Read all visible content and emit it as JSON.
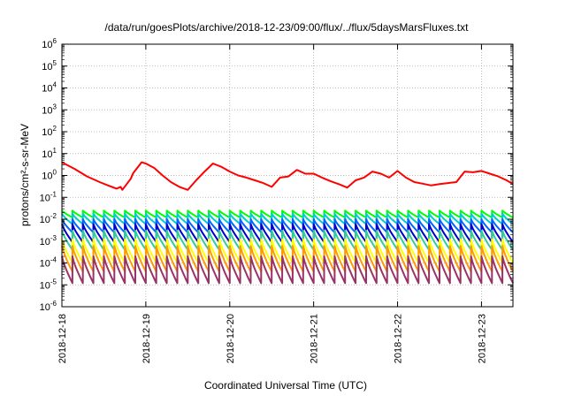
{
  "chart_data": {
    "type": "line",
    "title": "/data/run/goesPlots/archive/2018-12-23/09:00/flux/../flux/5daysMarsFluxes.txt",
    "xlabel": "Coordinated Universal Time (UTC)",
    "ylabel": "protons/cm²-s-sr-MeV",
    "yscale": "log",
    "ylim": [
      1e-06,
      1000000.0
    ],
    "xlim": [
      "2018-12-18",
      "2018-12-23 09:00"
    ],
    "x_ticks": [
      "2018-12-18",
      "2018-12-19",
      "2018-12-20",
      "2018-12-21",
      "2018-12-22",
      "2018-12-23"
    ],
    "y_ticks": [
      "10-6",
      "10-5",
      "10-4",
      "10-3",
      "10-2",
      "10-1",
      "100",
      "101",
      "102",
      "103",
      "104",
      "105",
      "106"
    ],
    "grid": true,
    "legend": "none",
    "series": [
      {
        "color": "#ff0000",
        "x_days": [
          0.0,
          0.15,
          0.3,
          0.45,
          0.55,
          0.65,
          0.7,
          0.72,
          0.82,
          0.85,
          0.95,
          1.0,
          1.1,
          1.2,
          1.3,
          1.4,
          1.5,
          1.6,
          1.7,
          1.8,
          1.9,
          2.0,
          2.1,
          2.2,
          2.3,
          2.4,
          2.5,
          2.6,
          2.7,
          2.8,
          2.9,
          3.0,
          3.1,
          3.2,
          3.3,
          3.4,
          3.5,
          3.6,
          3.7,
          3.8,
          3.9,
          4.0,
          4.1,
          4.2,
          4.3,
          4.4,
          4.5,
          4.6,
          4.7,
          4.8,
          4.9,
          5.0,
          5.1,
          5.2,
          5.3,
          5.375
        ],
        "values": [
          4.0,
          2.0,
          0.9,
          0.5,
          0.35,
          0.25,
          0.3,
          0.22,
          0.7,
          1.3,
          4.0,
          3.5,
          2.2,
          1.0,
          0.5,
          0.3,
          0.22,
          0.6,
          1.5,
          3.5,
          2.5,
          1.5,
          1.0,
          0.8,
          0.6,
          0.45,
          0.3,
          0.8,
          0.9,
          1.8,
          1.2,
          1.2,
          0.8,
          0.55,
          0.4,
          0.28,
          0.6,
          0.8,
          1.5,
          1.2,
          0.8,
          1.6,
          0.8,
          0.5,
          0.42,
          0.35,
          0.4,
          0.45,
          0.5,
          1.5,
          1.4,
          1.6,
          1.2,
          0.9,
          0.6,
          0.4
        ]
      },
      {
        "color": "#00ff00",
        "period_days": 0.125,
        "peak": 0.025,
        "trough": 0.012
      },
      {
        "color": "#00cccc",
        "period_days": 0.125,
        "peak": 0.018,
        "trough": 0.006
      },
      {
        "color": "#0066ff",
        "period_days": 0.125,
        "peak": 0.01,
        "trough": 0.0025
      },
      {
        "color": "#0000cc",
        "period_days": 0.125,
        "peak": 0.006,
        "trough": 0.0009
      },
      {
        "color": "#33cc99",
        "period_days": 0.125,
        "peak": 0.003,
        "trough": 0.0004
      },
      {
        "color": "#ffff00",
        "period_days": 0.125,
        "peak": 0.0012,
        "trough": 0.0001
      },
      {
        "color": "#ff9900",
        "period_days": 0.125,
        "peak": 0.0006,
        "trough": 4e-05
      },
      {
        "color": "#993366",
        "period_days": 0.125,
        "peak": 0.0002,
        "trough": 1.2e-05
      }
    ]
  }
}
